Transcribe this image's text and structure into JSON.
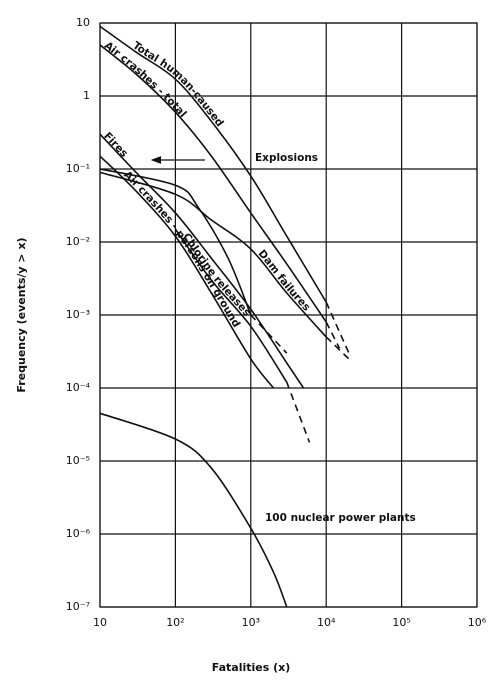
{
  "chart_data": {
    "type": "line",
    "log_x": true,
    "log_y": true,
    "grid": true,
    "color": "#111111",
    "x_label": "Fatalities (x)",
    "y_label": "Frequency (events/y > x)",
    "xlim": [
      10,
      1000000
    ],
    "xticks": [
      10,
      {
        "value": 100,
        "label": "10²"
      },
      {
        "value": 1000,
        "label": "10³"
      },
      {
        "value": 10000,
        "label": "10⁴"
      },
      {
        "value": 100000,
        "label": "10⁵"
      },
      {
        "value": 1000000,
        "label": "10⁶"
      }
    ],
    "ylim": [
      1e-07,
      10
    ],
    "yticks": [
      {
        "value": 1e-07,
        "label": "10⁻⁷"
      },
      {
        "value": 1e-06,
        "label": "10⁻⁶"
      },
      {
        "value": 1e-05,
        "label": "10⁻⁵"
      },
      {
        "value": 0.0001,
        "label": "10⁻⁴"
      },
      {
        "value": 0.001,
        "label": "10⁻³"
      },
      {
        "value": 0.01,
        "label": "10⁻²"
      },
      {
        "value": 0.1,
        "label": "10⁻¹"
      },
      1,
      10
    ],
    "series": [
      {
        "name": "Total human-caused",
        "x": [
          10,
          30,
          100,
          300,
          1000,
          3000,
          10000,
          20000
        ],
        "values": [
          9,
          4,
          1.7,
          0.45,
          0.08,
          0.012,
          0.0015,
          0.0003
        ],
        "dashed_from": 6
      },
      {
        "name": "Air crashes - total",
        "x": [
          10,
          30,
          100,
          300,
          1000,
          3000,
          10000,
          15000
        ],
        "values": [
          5,
          2,
          0.6,
          0.15,
          0.025,
          0.005,
          0.0008,
          0.00035
        ],
        "dashed_from": 6
      },
      {
        "name": "Fires",
        "x": [
          10,
          30,
          100,
          300,
          1000,
          3000,
          5000
        ],
        "values": [
          0.3,
          0.09,
          0.025,
          0.006,
          0.0012,
          0.00022,
          0.0001
        ]
      },
      {
        "name": "Explosions",
        "x": [
          10,
          100,
          200,
          500,
          1000,
          3000
        ],
        "values": [
          0.1,
          0.06,
          0.03,
          0.006,
          0.001,
          0.0003
        ],
        "dashed_from": 4
      },
      {
        "name": "Dam failures",
        "x": [
          10,
          100,
          300,
          1000,
          3000,
          10000,
          20000
        ],
        "values": [
          0.09,
          0.045,
          0.02,
          0.008,
          0.002,
          0.0005,
          0.00025
        ],
        "dashed_from": 5
      },
      {
        "name": "Air crashes - persons on ground",
        "x": [
          10,
          30,
          100,
          300,
          1000,
          2000
        ],
        "values": [
          0.15,
          0.05,
          0.012,
          0.002,
          0.00025,
          0.0001
        ]
      },
      {
        "name": "Chlorine releases",
        "x": [
          100,
          300,
          1000,
          3000,
          6000
        ],
        "values": [
          0.015,
          0.003,
          0.0007,
          0.00012,
          1.8e-05
        ],
        "dashed_from": 3
      },
      {
        "name": "100 nuclear power plants",
        "x": [
          10,
          100,
          300,
          1000,
          2000,
          3000
        ],
        "values": [
          4.5e-05,
          2e-05,
          8e-06,
          1.2e-06,
          3e-07,
          1e-07
        ]
      }
    ]
  }
}
